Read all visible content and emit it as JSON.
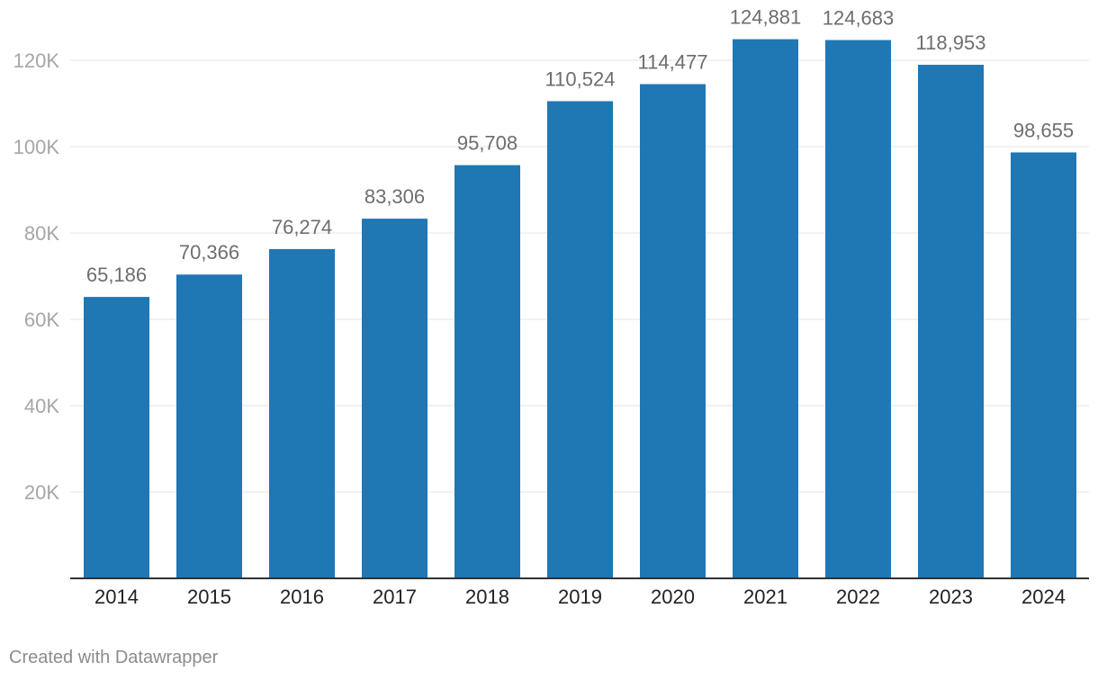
{
  "chart_data": {
    "type": "bar",
    "categories": [
      "2014",
      "2015",
      "2016",
      "2017",
      "2018",
      "2019",
      "2020",
      "2021",
      "2022",
      "2023",
      "2024"
    ],
    "values": [
      65186,
      70366,
      76274,
      83306,
      95708,
      110524,
      114477,
      124881,
      124683,
      118953,
      98655
    ],
    "data_labels": [
      "65,186",
      "70,366",
      "76,274",
      "83,306",
      "95,708",
      "110,524",
      "114,477",
      "124,881",
      "124,683",
      "118,953",
      "98,655"
    ],
    "yticks": [
      20000,
      40000,
      60000,
      80000,
      100000,
      120000
    ],
    "ytick_labels": [
      "20K",
      "40K",
      "60K",
      "80K",
      "100K",
      "120K"
    ],
    "ylim": [
      0,
      120000
    ],
    "grid": true,
    "legend": "none",
    "bar_color": "#1f77b4",
    "title": "",
    "xlabel": "",
    "ylabel": ""
  },
  "footer": {
    "credit": "Created with Datawrapper"
  }
}
